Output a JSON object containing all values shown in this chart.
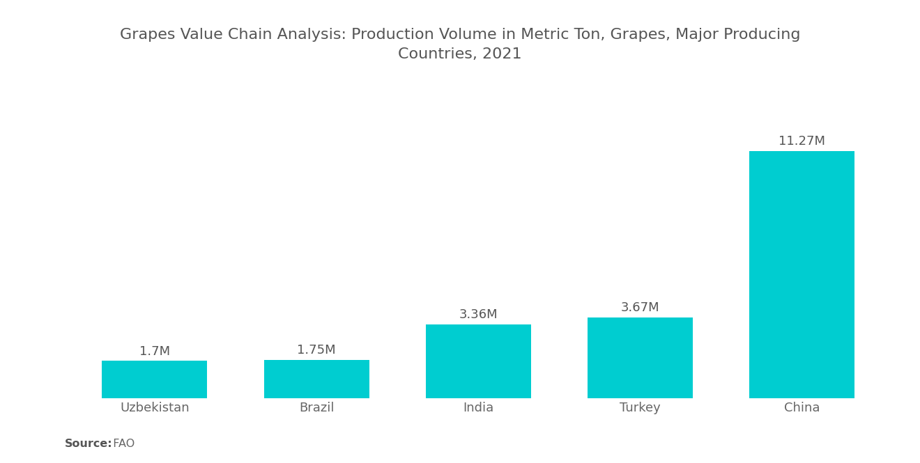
{
  "title": "Grapes Value Chain Analysis: Production Volume in Metric Ton, Grapes, Major Producing\nCountries, 2021",
  "categories": [
    "Uzbekistan",
    "Brazil",
    "India",
    "Turkey",
    "China"
  ],
  "values": [
    1.7,
    1.75,
    3.36,
    3.67,
    11.27
  ],
  "labels": [
    "1.7M",
    "1.75M",
    "3.36M",
    "3.67M",
    "11.27M"
  ],
  "bar_color": "#00CDD0",
  "background_color": "#FFFFFF",
  "title_fontsize": 16,
  "label_fontsize": 13,
  "tick_fontsize": 13,
  "source_bold": "Source:",
  "source_normal": "  FAO",
  "ylim": [
    0,
    13.5
  ]
}
